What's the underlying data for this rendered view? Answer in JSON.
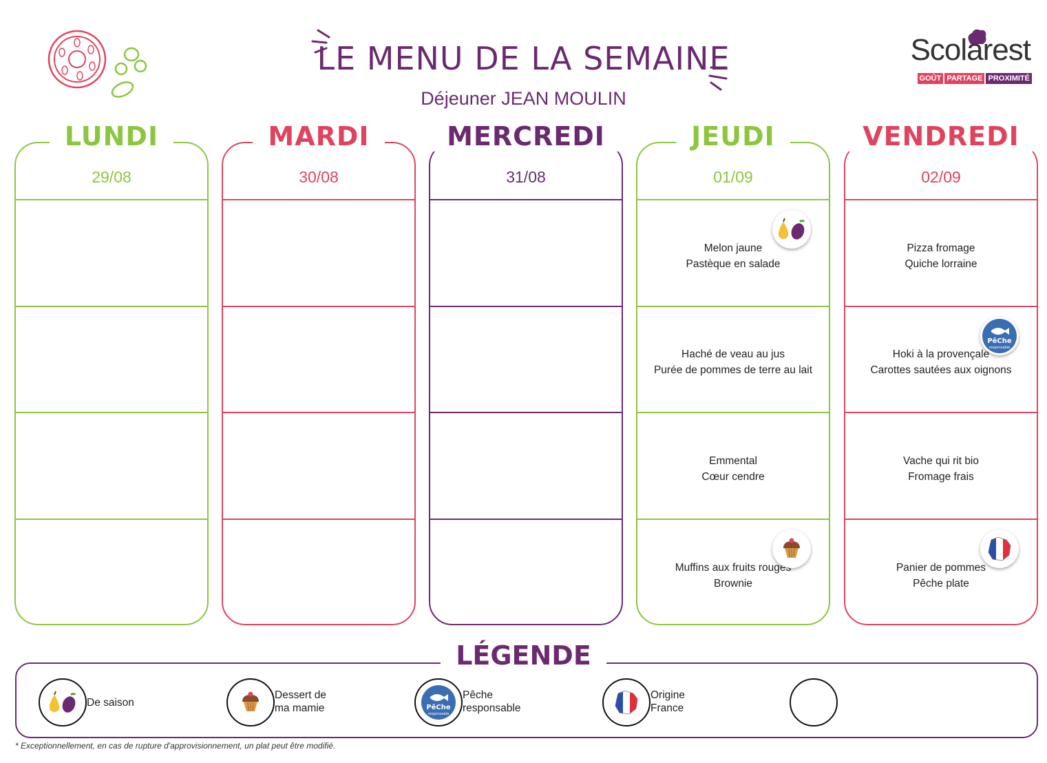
{
  "header": {
    "title": "LE MENU DE LA SEMAINE",
    "subtitle": "Déjeuner JEAN MOULIN"
  },
  "logo": {
    "name": "Scolarest",
    "tagline": [
      "GOÛT",
      "PARTAGE",
      "PROXIMITÉ"
    ]
  },
  "colors": {
    "green": "#8cc63f",
    "red": "#e0435e",
    "purple": "#6b2a70"
  },
  "days": [
    {
      "name": "LUNDI",
      "date": "29/08",
      "color": "green",
      "cells": [
        [],
        [],
        [],
        []
      ]
    },
    {
      "name": "MARDI",
      "date": "30/08",
      "color": "red",
      "cells": [
        [],
        [],
        [],
        []
      ]
    },
    {
      "name": "MERCREDI",
      "date": "31/08",
      "color": "purple",
      "cells": [
        [],
        [],
        [],
        []
      ]
    },
    {
      "name": "JEUDI",
      "date": "01/09",
      "color": "green",
      "cells": [
        [
          "Melon jaune",
          "Pastèque en salade"
        ],
        [
          "Haché de veau au jus",
          "Purée de pommes de terre au lait"
        ],
        [
          "Emmental",
          "Cœur cendre"
        ],
        [
          "Muffins aux fruits rouges",
          "Brownie"
        ]
      ],
      "badges": [
        "season-icon",
        null,
        null,
        "muffin-icon"
      ]
    },
    {
      "name": "VENDREDI",
      "date": "02/09",
      "color": "red",
      "cells": [
        [
          "Pizza fromage",
          "Quiche lorraine"
        ],
        [
          "Hoki à la provençale",
          "Carottes sautées aux oignons"
        ],
        [
          "Vache qui rit bio",
          "Fromage frais"
        ],
        [
          "Panier de pommes",
          "Pêche plate"
        ]
      ],
      "badges": [
        null,
        "fish-icon",
        null,
        "france-flag-icon"
      ]
    }
  ],
  "legend": {
    "title": "LÉGENDE",
    "items": [
      {
        "icon": "season-icon",
        "label": "De saison"
      },
      {
        "icon": "muffin-icon",
        "label": "Dessert de\nma mamie"
      },
      {
        "icon": "fish-icon",
        "label": "Pêche\nresponsable"
      },
      {
        "icon": "france-flag-icon",
        "label": "Origine\nFrance"
      },
      {
        "icon": "empty-icon",
        "label": ""
      }
    ]
  },
  "footnote": "* Exceptionnellement, en cas de rupture d'approvisionnement, un plat peut être modifié."
}
